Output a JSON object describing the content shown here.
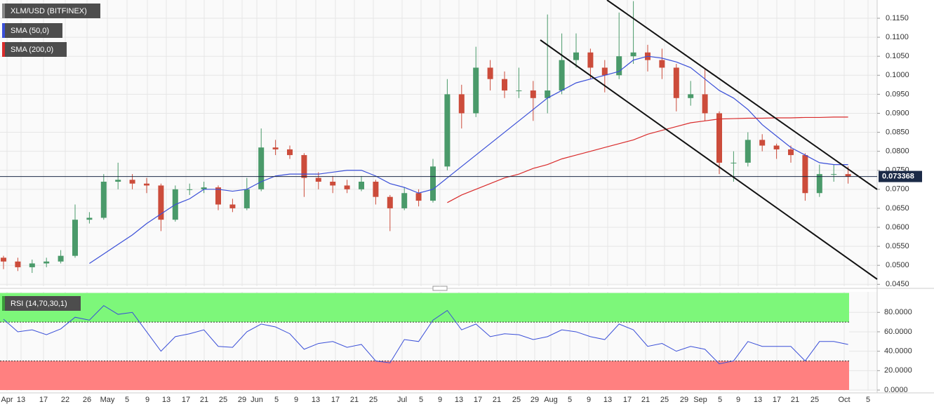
{
  "chart_data": [
    {
      "type": "candlestick",
      "title": "XLM/USD (BITFINEX)",
      "up_color": "#4a9a6a",
      "down_color": "#cc4c3b",
      "ohlc": [
        [
          0.052,
          0.0525,
          0.049,
          0.051
        ],
        [
          0.051,
          0.052,
          0.0485,
          0.0495
        ],
        [
          0.0495,
          0.0515,
          0.048,
          0.0505
        ],
        [
          0.0505,
          0.052,
          0.0495,
          0.051
        ],
        [
          0.051,
          0.054,
          0.0505,
          0.0525
        ],
        [
          0.0525,
          0.066,
          0.052,
          0.062
        ],
        [
          0.062,
          0.064,
          0.061,
          0.0625
        ],
        [
          0.0625,
          0.074,
          0.062,
          0.072
        ],
        [
          0.072,
          0.077,
          0.07,
          0.0725
        ],
        [
          0.0725,
          0.074,
          0.07,
          0.0715
        ],
        [
          0.0715,
          0.073,
          0.069,
          0.071
        ],
        [
          0.071,
          0.0715,
          0.059,
          0.062
        ],
        [
          0.062,
          0.071,
          0.0615,
          0.07
        ],
        [
          0.07,
          0.0715,
          0.0685,
          0.07
        ],
        [
          0.07,
          0.072,
          0.069,
          0.0705
        ],
        [
          0.0705,
          0.071,
          0.0645,
          0.066
        ],
        [
          0.066,
          0.0675,
          0.064,
          0.065
        ],
        [
          0.065,
          0.073,
          0.0645,
          0.07
        ],
        [
          0.07,
          0.086,
          0.0695,
          0.081
        ],
        [
          0.081,
          0.083,
          0.079,
          0.0805
        ],
        [
          0.0805,
          0.0815,
          0.078,
          0.079
        ],
        [
          0.079,
          0.0795,
          0.068,
          0.073
        ],
        [
          0.073,
          0.0745,
          0.07,
          0.072
        ],
        [
          0.072,
          0.0735,
          0.069,
          0.071
        ],
        [
          0.071,
          0.0725,
          0.069,
          0.07
        ],
        [
          0.07,
          0.0735,
          0.0695,
          0.072
        ],
        [
          0.072,
          0.0725,
          0.066,
          0.068
        ],
        [
          0.068,
          0.0685,
          0.059,
          0.065
        ],
        [
          0.065,
          0.0705,
          0.0645,
          0.069
        ],
        [
          0.069,
          0.07,
          0.0655,
          0.067
        ],
        [
          0.067,
          0.078,
          0.0665,
          0.076
        ],
        [
          0.076,
          0.099,
          0.075,
          0.095
        ],
        [
          0.095,
          0.0975,
          0.086,
          0.09
        ],
        [
          0.09,
          0.1075,
          0.089,
          0.102
        ],
        [
          0.102,
          0.104,
          0.096,
          0.099
        ],
        [
          0.099,
          0.101,
          0.094,
          0.096
        ],
        [
          0.096,
          0.102,
          0.094,
          0.096
        ],
        [
          0.096,
          0.0985,
          0.088,
          0.094
        ],
        [
          0.094,
          0.116,
          0.09,
          0.096
        ],
        [
          0.096,
          0.111,
          0.095,
          0.104
        ],
        [
          0.104,
          0.111,
          0.102,
          0.106
        ],
        [
          0.106,
          0.107,
          0.099,
          0.102
        ],
        [
          0.102,
          0.104,
          0.0955,
          0.1
        ],
        [
          0.1,
          0.1165,
          0.099,
          0.105
        ],
        [
          0.105,
          0.1195,
          0.103,
          0.106
        ],
        [
          0.106,
          0.108,
          0.101,
          0.104
        ],
        [
          0.104,
          0.107,
          0.099,
          0.102
        ],
        [
          0.102,
          0.103,
          0.0905,
          0.094
        ],
        [
          0.094,
          0.0985,
          0.092,
          0.095
        ],
        [
          0.095,
          0.1015,
          0.088,
          0.09
        ],
        [
          0.09,
          0.0905,
          0.074,
          0.077
        ],
        [
          0.077,
          0.08,
          0.072,
          0.077
        ],
        [
          0.077,
          0.085,
          0.076,
          0.083
        ],
        [
          0.083,
          0.0845,
          0.08,
          0.0815
        ],
        [
          0.0815,
          0.082,
          0.078,
          0.0805
        ],
        [
          0.0805,
          0.0815,
          0.077,
          0.079
        ],
        [
          0.079,
          0.0795,
          0.067,
          0.069
        ],
        [
          0.069,
          0.0765,
          0.068,
          0.074
        ],
        [
          0.074,
          0.0765,
          0.072,
          0.074
        ],
        [
          0.074,
          0.076,
          0.0715,
          0.07337
        ]
      ],
      "series": [
        {
          "name": "SMA (50,0)",
          "color": "#3a4fd8",
          "values": [
            null,
            null,
            null,
            null,
            null,
            null,
            0.0505,
            0.053,
            0.0555,
            0.058,
            0.061,
            0.0635,
            0.066,
            0.0675,
            0.07,
            0.07,
            0.0695,
            0.07,
            0.072,
            0.0735,
            0.074,
            0.074,
            0.074,
            0.0745,
            0.075,
            0.075,
            0.0735,
            0.0715,
            0.0705,
            0.069,
            0.07,
            0.073,
            0.076,
            0.079,
            0.082,
            0.085,
            0.088,
            0.091,
            0.094,
            0.096,
            0.098,
            0.099,
            0.1,
            0.101,
            0.104,
            0.105,
            0.1045,
            0.1035,
            0.102,
            0.099,
            0.096,
            0.094,
            0.091,
            0.087,
            0.084,
            0.081,
            0.079,
            0.077,
            0.0765,
            0.0765
          ]
        },
        {
          "name": "SMA (200,0)",
          "color": "#d92b2b",
          "values": [
            null,
            null,
            null,
            null,
            null,
            null,
            null,
            null,
            null,
            null,
            null,
            null,
            null,
            null,
            null,
            null,
            null,
            null,
            null,
            null,
            null,
            null,
            null,
            null,
            null,
            null,
            null,
            null,
            null,
            null,
            null,
            0.0665,
            0.0685,
            0.07,
            0.0715,
            0.073,
            0.074,
            0.0755,
            0.0765,
            0.078,
            0.079,
            0.08,
            0.081,
            0.082,
            0.083,
            0.0845,
            0.0855,
            0.0865,
            0.0875,
            0.088,
            0.0885,
            0.0886,
            0.0887,
            0.0887,
            0.0888,
            0.0888,
            0.0889,
            0.0889,
            0.089,
            0.089
          ]
        }
      ],
      "current_price": 0.073368,
      "ylim": [
        0.0445,
        0.1198
      ],
      "yticks": [
        {
          "value": 0.045,
          "label": "0.0450"
        },
        {
          "value": 0.05,
          "label": "0.0500"
        },
        {
          "value": 0.055,
          "label": "0.0550"
        },
        {
          "value": 0.06,
          "label": "0.0600"
        },
        {
          "value": 0.065,
          "label": "0.0650"
        },
        {
          "value": 0.07,
          "label": "0.0700"
        },
        {
          "value": 0.075,
          "label": "0.0750"
        },
        {
          "value": 0.08,
          "label": "0.0800"
        },
        {
          "value": 0.085,
          "label": "0.0850"
        },
        {
          "value": 0.09,
          "label": "0.0900"
        },
        {
          "value": 0.095,
          "label": "0.0950"
        },
        {
          "value": 0.1,
          "label": "0.1000"
        },
        {
          "value": 0.105,
          "label": "0.1050"
        },
        {
          "value": 0.11,
          "label": "0.1100"
        },
        {
          "value": 0.115,
          "label": "0.1150"
        }
      ],
      "x_labels": [
        "Apr",
        "13",
        "17",
        "22",
        "26",
        "May",
        "5",
        "9",
        "13",
        "17",
        "21",
        "25",
        "29",
        "Jun",
        "5",
        "9",
        "13",
        "17",
        "21",
        "25",
        "Jul",
        "5",
        "9",
        "13",
        "17",
        "21",
        "25",
        "29",
        "Aug",
        "5",
        "9",
        "13",
        "17",
        "21",
        "25",
        "29",
        "Sep",
        "5",
        "9",
        "13",
        "17",
        "21",
        "25",
        "Oct",
        "5"
      ],
      "grid": true
    },
    {
      "type": "line",
      "title": "RSI (14,70,30,1)",
      "overbought": 70,
      "oversold": 30,
      "series": [
        {
          "name": "RSI",
          "color": "#3a4fd8",
          "values": [
            73,
            60,
            62,
            57,
            63,
            75,
            72,
            87,
            78,
            80,
            60,
            40,
            55,
            58,
            62,
            45,
            44,
            60,
            68,
            65,
            58,
            42,
            48,
            50,
            44,
            47,
            30,
            28,
            52,
            50,
            72,
            82,
            62,
            68,
            55,
            58,
            57,
            52,
            55,
            62,
            60,
            55,
            52,
            68,
            62,
            45,
            48,
            40,
            45,
            42,
            27,
            30,
            50,
            45,
            45,
            45,
            30,
            50,
            50,
            47
          ]
        }
      ],
      "ylim": [
        0,
        100
      ],
      "yticks": [
        {
          "value": 0,
          "label": "0.0000"
        },
        {
          "value": 20,
          "label": "20.0000"
        },
        {
          "value": 40,
          "label": "40.0000"
        },
        {
          "value": 60,
          "label": "60.0000"
        },
        {
          "value": 80,
          "label": "80.0000"
        }
      ],
      "grid": true
    }
  ]
}
